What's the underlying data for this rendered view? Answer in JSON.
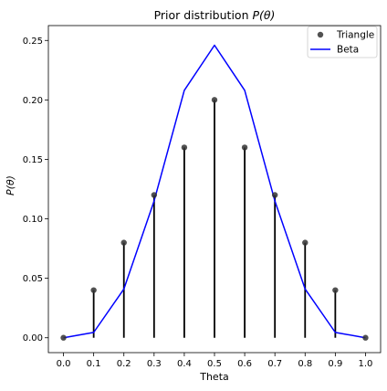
{
  "chart_data": {
    "type": "scatter",
    "title": "Prior distribution P(θ)",
    "title_parts": {
      "prefix": "Prior distribution ",
      "math": "P(θ)"
    },
    "xlabel": "Theta",
    "ylabel": "P(θ)",
    "xlim": [
      -0.05,
      1.05
    ],
    "ylim": [
      -0.0125,
      0.2625
    ],
    "xticks": [
      0.0,
      0.1,
      0.2,
      0.3,
      0.4,
      0.5,
      0.6,
      0.7,
      0.8,
      0.9,
      1.0
    ],
    "xtick_labels": [
      "0.0",
      "0.1",
      "0.2",
      "0.3",
      "0.4",
      "0.5",
      "0.6",
      "0.7",
      "0.8",
      "0.9",
      "1.0"
    ],
    "yticks": [
      0.0,
      0.05,
      0.1,
      0.15,
      0.2,
      0.25
    ],
    "ytick_labels": [
      "0.00",
      "0.05",
      "0.10",
      "0.15",
      "0.20",
      "0.25"
    ],
    "grid": false,
    "legend_position": "top-right",
    "series": [
      {
        "name": "Triangle",
        "kind": "stem",
        "color": "#333333",
        "x": [
          0.0,
          0.1,
          0.2,
          0.3,
          0.4,
          0.5,
          0.6,
          0.7,
          0.8,
          0.9,
          1.0
        ],
        "y": [
          0.0,
          0.04,
          0.08,
          0.12,
          0.16,
          0.2,
          0.16,
          0.12,
          0.08,
          0.04,
          0.0
        ]
      },
      {
        "name": "Beta",
        "kind": "line",
        "color": "#0000ff",
        "x": [
          0.0,
          0.1,
          0.2,
          0.3,
          0.4,
          0.5,
          0.6,
          0.7,
          0.8,
          0.9,
          1.0
        ],
        "y": [
          0.0,
          0.0045,
          0.041,
          0.115,
          0.208,
          0.246,
          0.208,
          0.115,
          0.041,
          0.0045,
          0.0
        ]
      }
    ]
  }
}
